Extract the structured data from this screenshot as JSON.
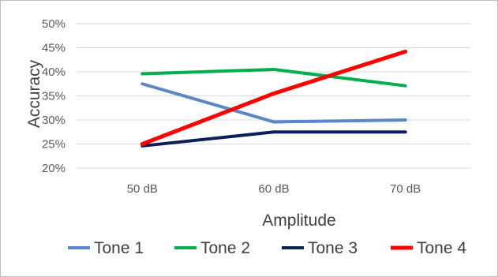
{
  "chart_data": {
    "type": "line",
    "categories": [
      "50 dB",
      "60 dB",
      "70 dB"
    ],
    "series": [
      {
        "name": "Tone 1",
        "values": [
          37.5,
          29.6,
          30.0
        ],
        "color": "#5b87c8"
      },
      {
        "name": "Tone 2",
        "values": [
          39.6,
          40.5,
          37.1
        ],
        "color": "#00b050"
      },
      {
        "name": "Tone 3",
        "values": [
          24.6,
          27.5,
          27.5
        ],
        "color": "#0b1f5c"
      },
      {
        "name": "Tone 4",
        "values": [
          25.0,
          35.5,
          44.2
        ],
        "color": "#ff0000"
      }
    ],
    "title": "",
    "xlabel": "Amplitude",
    "ylabel": "Accuracy",
    "ylim": [
      20,
      50
    ],
    "yticks": [
      "20%",
      "25%",
      "30%",
      "35%",
      "40%",
      "45%",
      "50%"
    ],
    "grid": true,
    "legend": "bottom"
  }
}
